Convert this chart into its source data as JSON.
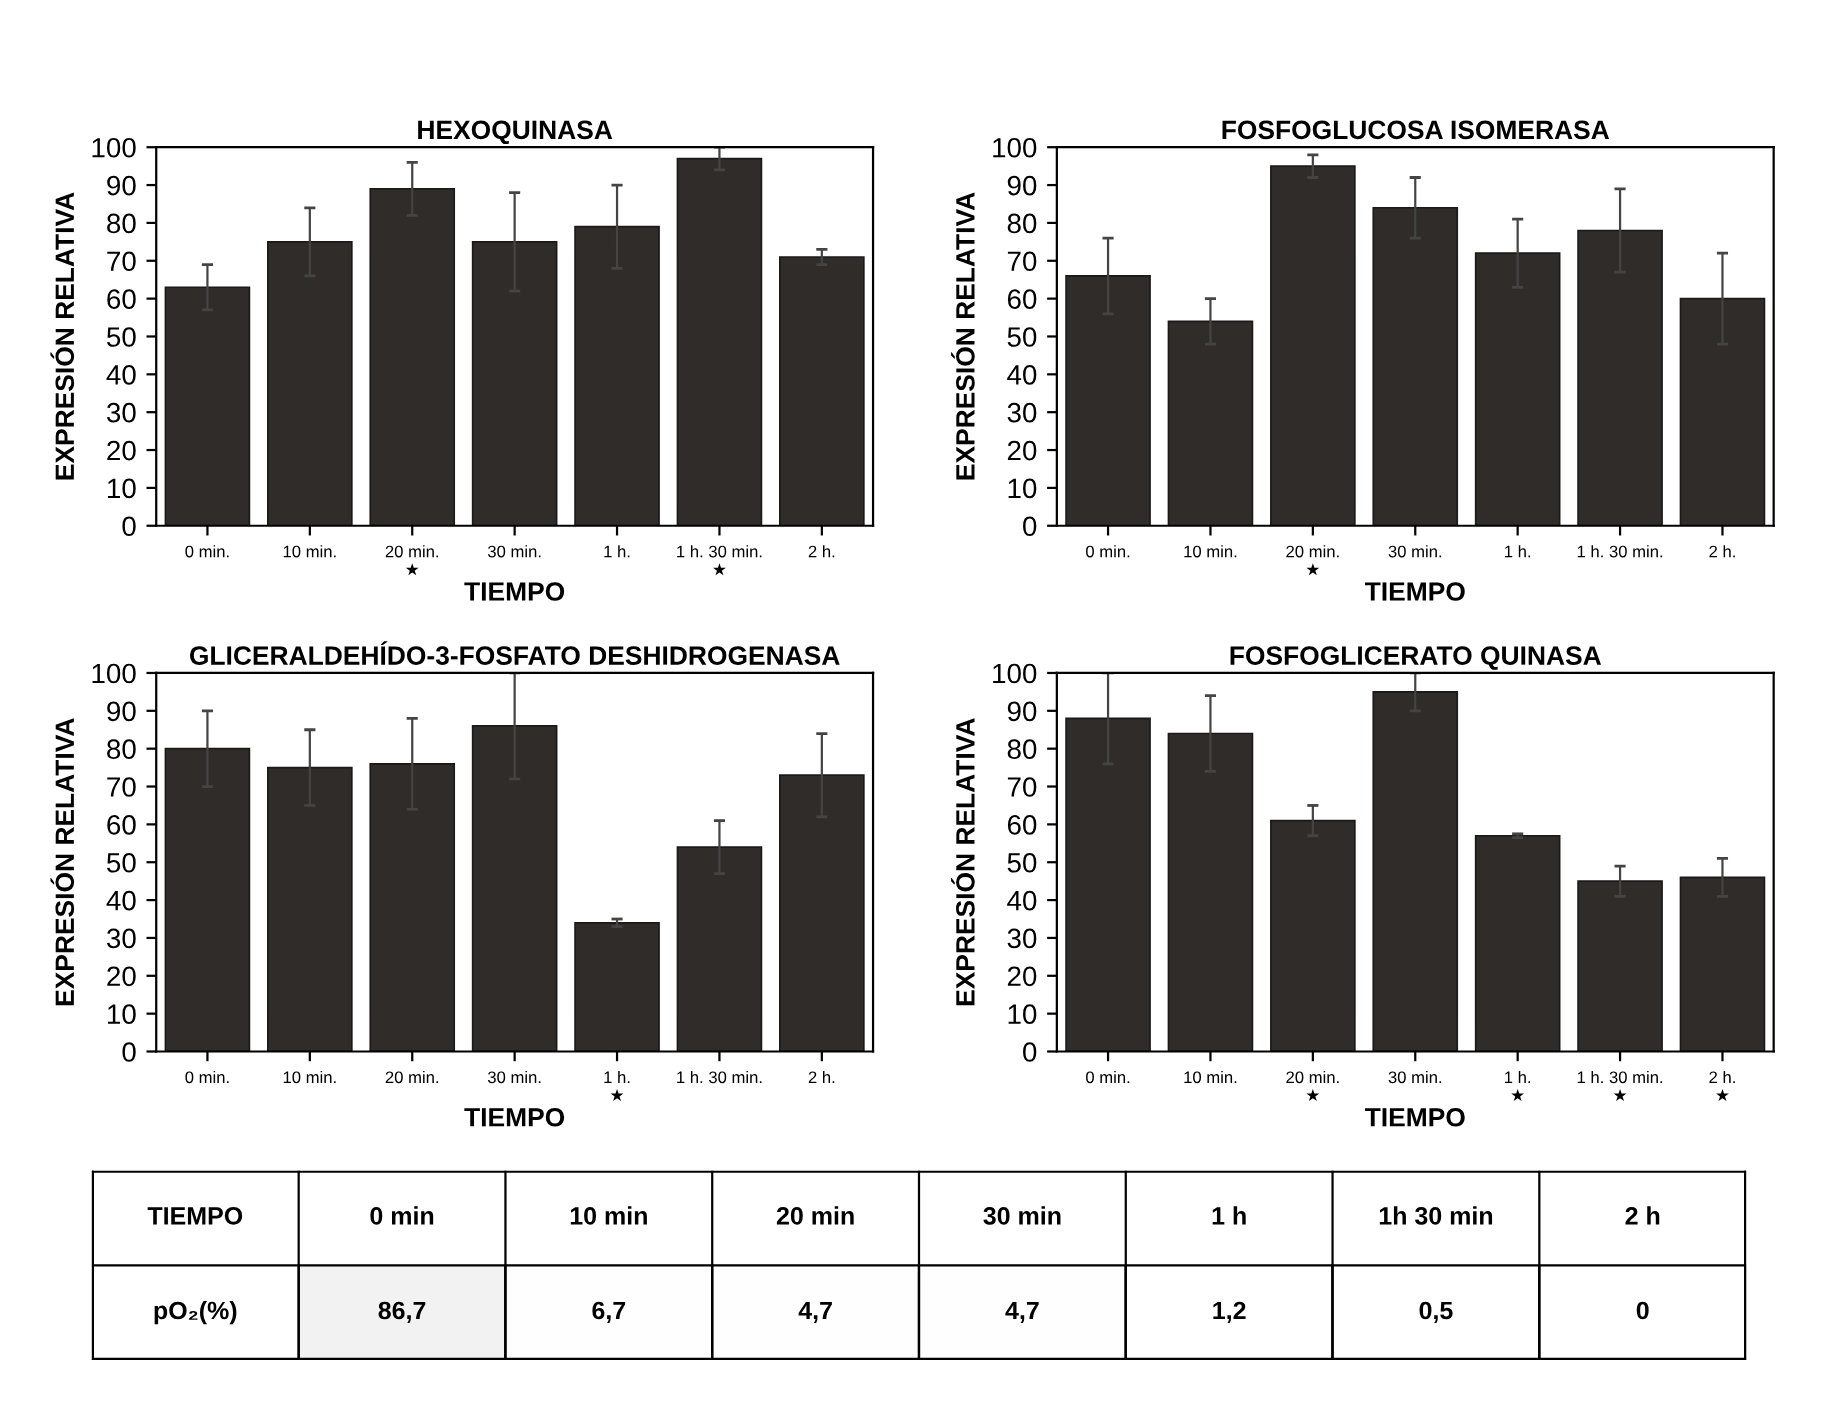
{
  "chart_data": [
    {
      "type": "bar",
      "title": "HEXOQUINASA",
      "xlabel": "TIEMPO",
      "ylabel": "EXPRESIÓN RELATIVA",
      "categories": [
        "0 min.",
        "10 min.",
        "20 min.\n★",
        "30 min.",
        "1 h.",
        "1 h. 30 min.\n★",
        "2 h."
      ],
      "values": [
        63,
        75,
        89,
        75,
        79,
        97,
        71
      ],
      "errors": [
        6,
        9,
        7,
        13,
        11,
        3,
        2
      ],
      "color": "#2f2c29",
      "ylim": [
        0,
        100
      ],
      "yticks": [
        0,
        10,
        20,
        30,
        40,
        50,
        60,
        70,
        80,
        90,
        100
      ],
      "grid": false
    },
    {
      "type": "bar",
      "title": "FOSFOGLUCOSA ISOMERASA",
      "xlabel": "TIEMPO",
      "ylabel": "EXPRESIÓN RELATIVA",
      "categories": [
        "0 min.",
        "10 min.",
        "20 min.\n★",
        "30 min.",
        "1 h.",
        "1 h. 30 min.",
        "2 h."
      ],
      "values": [
        66,
        54,
        95,
        84,
        72,
        78,
        60
      ],
      "errors": [
        10,
        6,
        3,
        8,
        9,
        11,
        12
      ],
      "color": "#2f2c29",
      "ylim": [
        0,
        100
      ],
      "yticks": [
        0,
        10,
        20,
        30,
        40,
        50,
        60,
        70,
        80,
        90,
        100
      ],
      "grid": false
    },
    {
      "type": "bar",
      "title": "GLICERALDEHÍDO-3-FOSFATO DESHIDROGENASA",
      "xlabel": "TIEMPO",
      "ylabel": "EXPRESIÓN RELATIVA",
      "categories": [
        "0 min.",
        "10 min.",
        "20 min.",
        "30 min.",
        "1 h.\n★",
        "1 h. 30 min.",
        "2 h."
      ],
      "values": [
        80,
        75,
        76,
        86,
        34,
        54,
        73
      ],
      "errors": [
        10,
        10,
        12,
        14,
        1,
        7,
        11
      ],
      "color": "#2f2c29",
      "ylim": [
        0,
        100
      ],
      "yticks": [
        0,
        10,
        20,
        30,
        40,
        50,
        60,
        70,
        80,
        90,
        100
      ],
      "grid": false
    },
    {
      "type": "bar",
      "title": "FOSFOGLICERATO QUINASA",
      "xlabel": "TIEMPO",
      "ylabel": "EXPRESIÓN RELATIVA",
      "categories": [
        "0 min.",
        "10 min.",
        "20 min.\n★",
        "30 min.",
        "1 h.\n★",
        "1 h. 30 min.\n★",
        "2 h.\n★"
      ],
      "values": [
        88,
        84,
        61,
        95,
        57,
        45,
        46
      ],
      "errors": [
        12,
        10,
        4,
        5,
        0.5,
        4,
        5
      ],
      "color": "#2f2c29",
      "ylim": [
        0,
        100
      ],
      "yticks": [
        0,
        10,
        20,
        30,
        40,
        50,
        60,
        70,
        80,
        90,
        100
      ],
      "grid": false
    },
    {
      "type": "heatmap",
      "xlabel": "TIEMPO",
      "categories": [
        "0 min",
        "10 min",
        "20 min",
        "30 min",
        "1 h",
        "1h 30 min",
        "2 h"
      ],
      "y_categories": [
        "pO₂(%)"
      ],
      "cells": [
        [
          86.7,
          6.7,
          4.7,
          4.7,
          1.2,
          0.5,
          0
        ]
      ],
      "cell_labels": [
        [
          "86,7",
          "6,7",
          "4,7",
          "4,7",
          "1,2",
          "0,5",
          "0"
        ]
      ]
    }
  ]
}
